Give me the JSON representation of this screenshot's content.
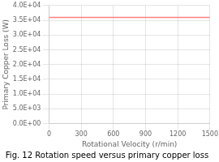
{
  "chart_data": {
    "type": "line",
    "title": "Fig. 12 Rotation speed versus primary copper loss",
    "xlabel": "Rotational Velocity (r/min)",
    "ylabel": "Primary Copper Loss (W)",
    "x": [
      0,
      1500
    ],
    "values": [
      36000,
      36000
    ],
    "color": "#FF8080",
    "xlim": [
      0,
      1500
    ],
    "xticks": [
      0,
      300,
      600,
      900,
      1200,
      1500
    ],
    "ylim": [
      0,
      40000
    ],
    "yticks": [
      {
        "value": 0,
        "label": "0.0E+00"
      },
      {
        "value": 5000,
        "label": "5.0E+03"
      },
      {
        "value": 10000,
        "label": "1.0E+04"
      },
      {
        "value": 15000,
        "label": "1.5E+04"
      },
      {
        "value": 20000,
        "label": "2.0E+04"
      },
      {
        "value": 25000,
        "label": "2.5E+04"
      },
      {
        "value": 30000,
        "label": "3.0E+04"
      },
      {
        "value": 35000,
        "label": "3.5E+04"
      },
      {
        "value": 40000,
        "label": "4.0E+04"
      }
    ],
    "grid": true
  }
}
